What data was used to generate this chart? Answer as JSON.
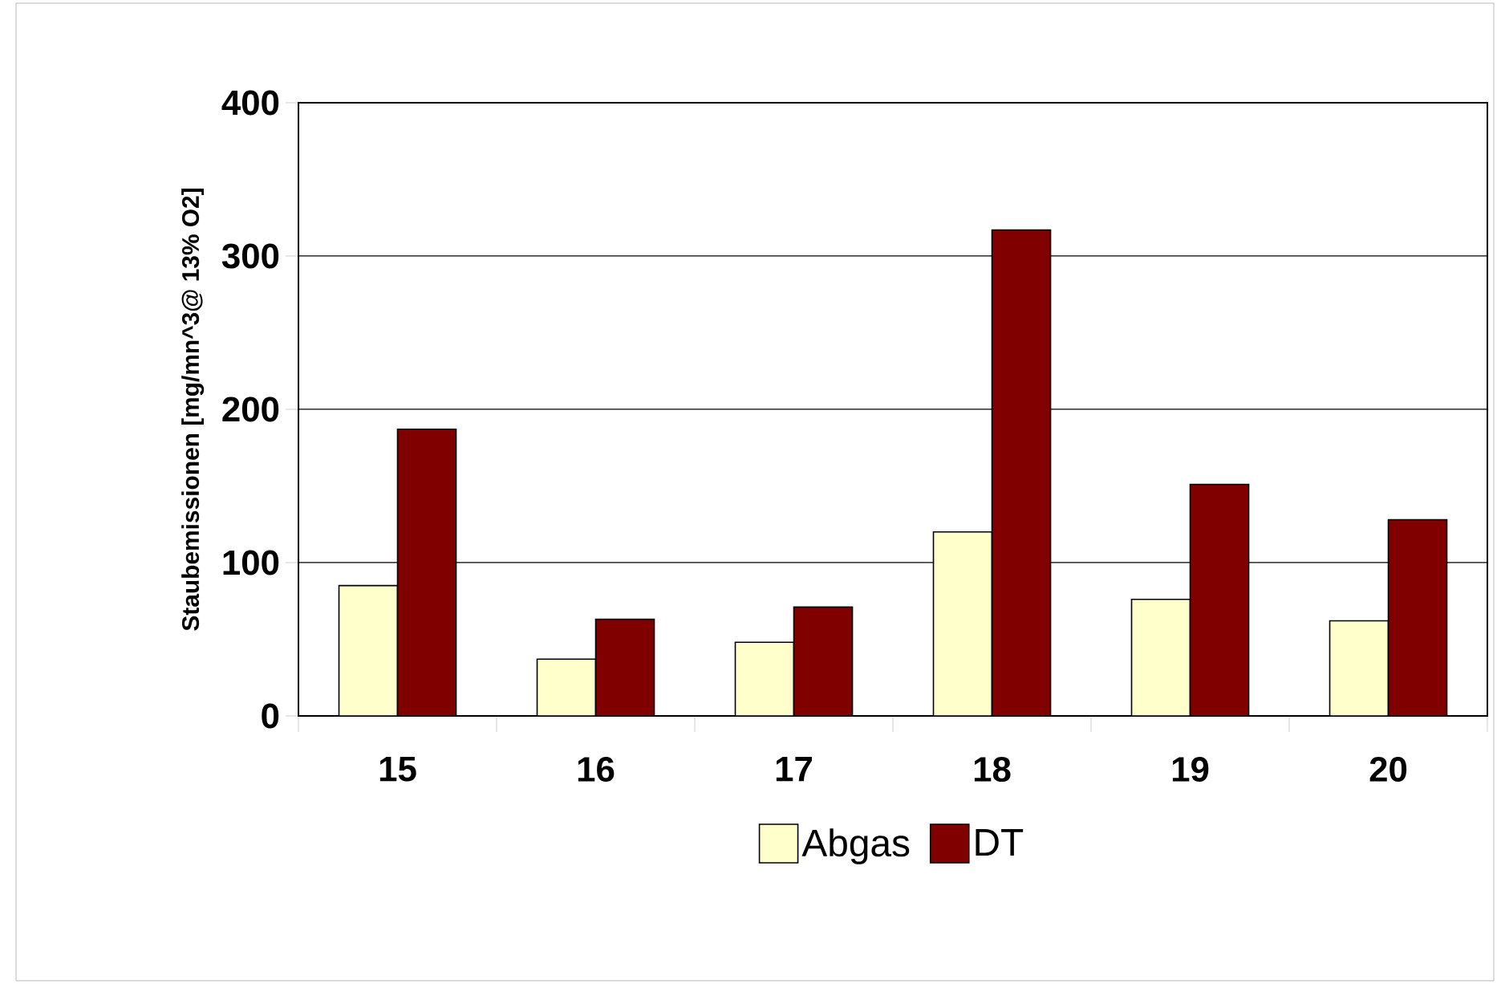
{
  "chart_data": {
    "type": "bar",
    "ylabel": "Staubemissionen [mg/mn^3@ 13% O2]",
    "categories": [
      "15",
      "16",
      "17",
      "18",
      "19",
      "20"
    ],
    "series": [
      {
        "name": "Abgas",
        "color": "#ffffcc",
        "values": [
          85,
          37,
          48,
          120,
          76,
          62
        ]
      },
      {
        "name": "DT",
        "color": "#800000",
        "values": [
          187,
          63,
          71,
          317,
          151,
          128
        ]
      }
    ],
    "ylim": [
      0,
      400
    ],
    "yticks": [
      0,
      100,
      200,
      300,
      400
    ],
    "grid": "y",
    "legend": "bottom"
  }
}
